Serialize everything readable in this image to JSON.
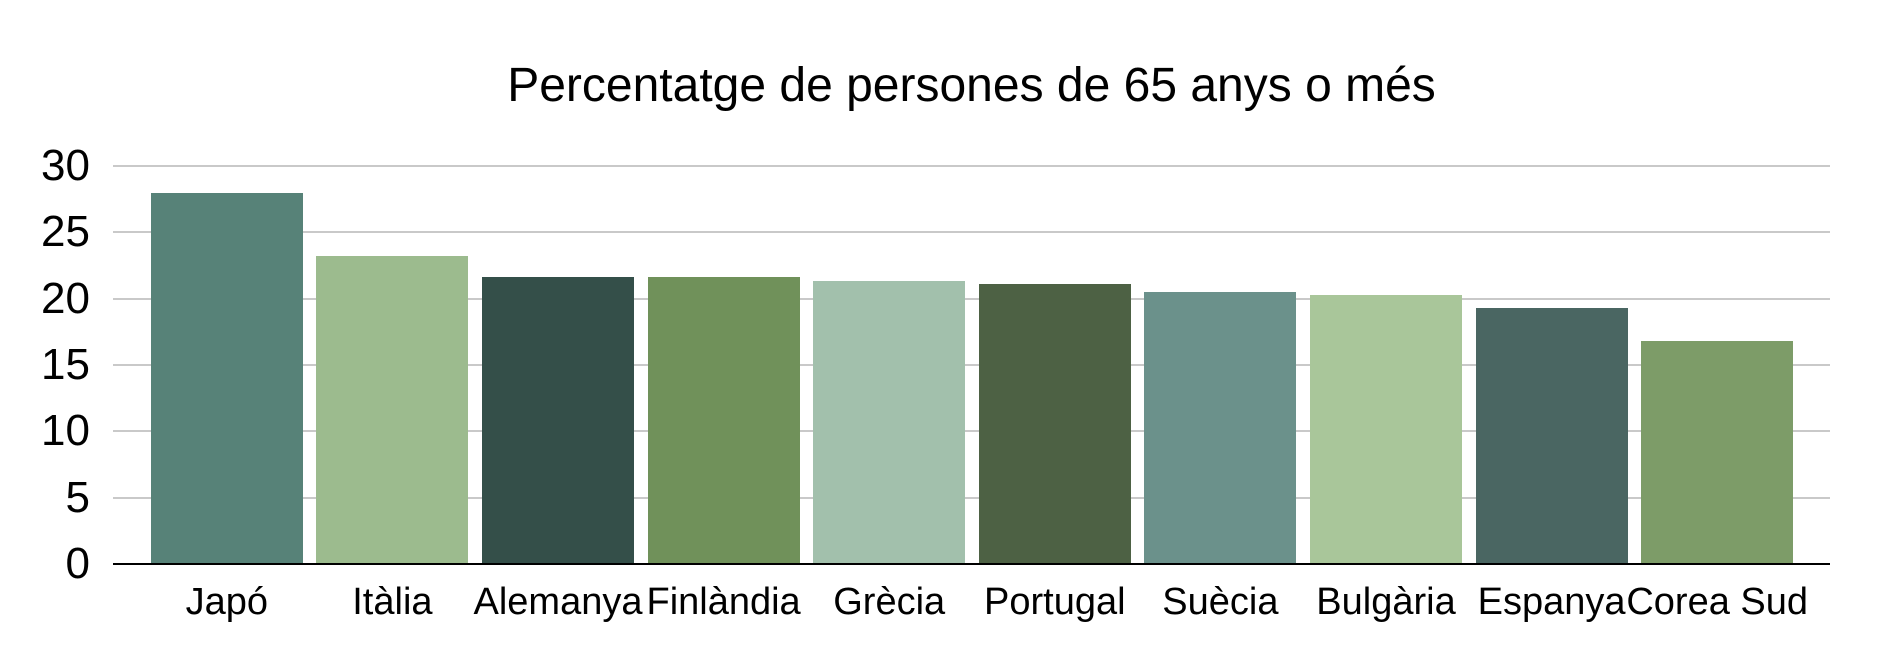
{
  "chart_data": {
    "type": "bar",
    "title": "Percentatge de persones de 65 anys o més",
    "categories": [
      "Japó",
      "Itàlia",
      "Alemanya",
      "Finlàndia",
      "Grècia",
      "Portugal",
      "Suècia",
      "Bulgària",
      "Espanya",
      "Corea Sud"
    ],
    "values": [
      28.0,
      23.2,
      21.6,
      21.6,
      21.3,
      21.1,
      20.5,
      20.3,
      19.3,
      16.8
    ],
    "bar_colors": [
      "#578278",
      "#9cbb8e",
      "#344f49",
      "#70915a",
      "#a2c0ac",
      "#4d6144",
      "#6b918b",
      "#a9c69a",
      "#4a6662",
      "#7d9c68"
    ],
    "xlabel": "",
    "ylabel": "",
    "ylim": [
      0,
      30
    ],
    "yticks": [
      0,
      5,
      10,
      15,
      20,
      25,
      30
    ],
    "grid": true,
    "legend": "none",
    "background_color": "#ffffff",
    "gridline_color": "#c9c9c9",
    "axis_line_color": "#000000",
    "text_color": "#000000"
  }
}
